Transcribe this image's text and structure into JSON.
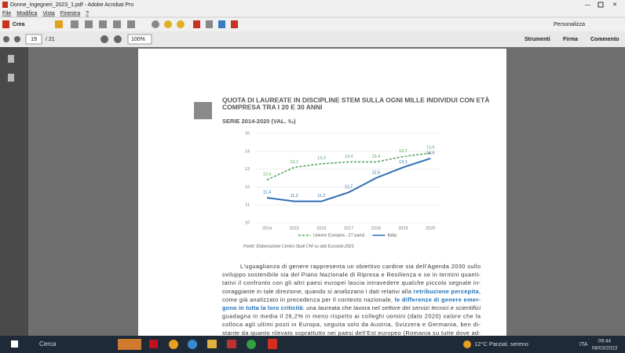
{
  "window": {
    "title": "Donne_Ingegneri_2023_1.pdf - Adobe Acrobat Pro"
  },
  "menu": [
    "File",
    "Modifica",
    "Vista",
    "Finestra",
    "?"
  ],
  "toolbar": {
    "create": "Crea",
    "page": "19",
    "pages": "/ 21",
    "zoom": "100%",
    "customize": "Personalizza"
  },
  "tabs": [
    "Strumenti",
    "Firma",
    "Commento"
  ],
  "chart": {
    "type": "line",
    "title": [
      "QUOTA DI LAUREATE IN DISCIPLINE STEM SULLA OGNI MILLE INDIVIDUI CON ETÀ",
      "COMPRESA TRA I 20 E 30 ANNI"
    ],
    "subtitle": "SERIE 2014-2020 (VAL. ‰)",
    "categories": [
      "2014",
      "2015",
      "2016",
      "2017",
      "2018",
      "2019",
      "2020"
    ],
    "series": [
      {
        "name": "Unione Europea - 27 paesi",
        "color": "#5aa25a",
        "dashed": true,
        "values": [
          12.4,
          13.1,
          13.3,
          13.4,
          13.4,
          13.7,
          13.9
        ],
        "value_labels": [
          "12,4",
          "13,1",
          "13,3",
          "13,4",
          "13,4",
          "13,7",
          "13,9"
        ]
      },
      {
        "name": "Italia",
        "color": "#2f6db4",
        "values": [
          11.4,
          11.2,
          11.2,
          11.7,
          12.5,
          13.1,
          13.6
        ],
        "value_labels": [
          "11,4",
          "11,2",
          "11,2",
          "11,7",
          "12,5",
          "13,1",
          "13,6"
        ]
      }
    ],
    "ylim": [
      10,
      15
    ],
    "yticks": [
      10,
      11,
      12,
      13,
      14,
      15
    ],
    "grid": true,
    "source": "Fonte: Elaborazione Centro Studi CNI su dati Eurostat 2023"
  },
  "body": {
    "lines": [
      [
        "L'uguaglianza di genere rappresenta un obiettivo cardine sia dell'Agenda 2030 sullo"
      ],
      [
        "sviluppo sostenibile sia del Piano Nazionale di Ripresa e Resilienza e se in termini quanti-"
      ],
      [
        "tativi il confronto con gli altri paesi europei lascia intravedere qualche piccolo segnale in-"
      ],
      [
        "coraggiante in tale direzione, quando si analizzano i dati relativi alla ",
        "retribuzione percepita",
        ","
      ],
      [
        "come già analizzato in precedenza per il contesto nazionale, ",
        "le differenze di genere emer-"
      ],
      [
        "gono in tutta la loro criticità",
        ": una laureata che lavora nel ",
        "settore dei servizi tecnici e scientifici"
      ],
      [
        "guadagna in media il 26,2% in meno rispetto ai colleghi uomini (dato 2020) valore che la"
      ],
      [
        "colloca agli ultimi posti in Europa, seguita solo da Austria, Svizzera e Germania, ben di-"
      ],
      [
        "stante da quanto rilevato soprattutto nei paesi dell'Est europeo (Romania su tutte dove ad-"
      ]
    ]
  },
  "taskbar": {
    "search": "Cerca",
    "weather": "12°C Parzial. sereno",
    "lang": "ITA",
    "time": "09:44",
    "date": "08/03/2023"
  }
}
